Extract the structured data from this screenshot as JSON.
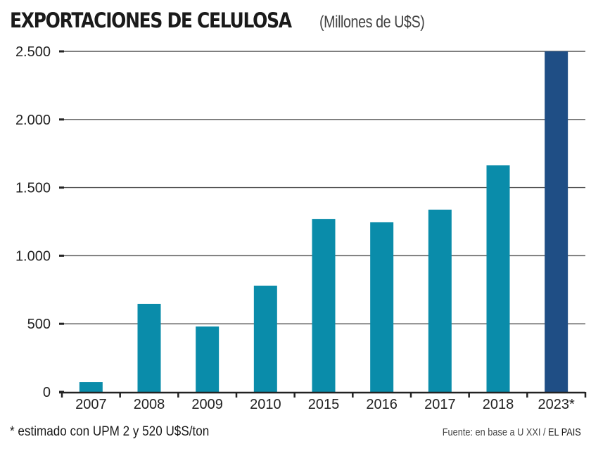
{
  "header": {
    "title": "EXPORTACIONES DE CELULOSA",
    "unit": "(Millones de U$S)"
  },
  "footer": {
    "footnote": "* estimado con UPM 2 y 520 U$S/ton",
    "source_prefix": "Fuente: en base a U XXI / ",
    "source_brand": "EL PAIS"
  },
  "colors": {
    "bar": "#0a8caa",
    "bar_estimate": "#1f4e85",
    "grid": "#333333",
    "text": "#1a1a1a"
  },
  "chart_data": {
    "type": "bar",
    "title": "EXPORTACIONES DE CELULOSA",
    "subtitle": "(Millones de U$S)",
    "xlabel": "",
    "ylabel": "",
    "categories": [
      "2007",
      "2008",
      "2009",
      "2010",
      "2015",
      "2016",
      "2017",
      "2018",
      "2023*"
    ],
    "values": [
      72,
      646,
      480,
      780,
      1270,
      1245,
      1338,
      1663,
      2500
    ],
    "estimated": [
      false,
      false,
      false,
      false,
      false,
      false,
      false,
      false,
      true
    ],
    "ylim": [
      0,
      2500
    ],
    "yticks": [
      0,
      500,
      1000,
      1500,
      2000,
      2500
    ],
    "ytick_labels": [
      "0",
      "500",
      "1.000",
      "1.500",
      "2.000",
      "2.500"
    ],
    "grid": true,
    "legend": "none"
  }
}
